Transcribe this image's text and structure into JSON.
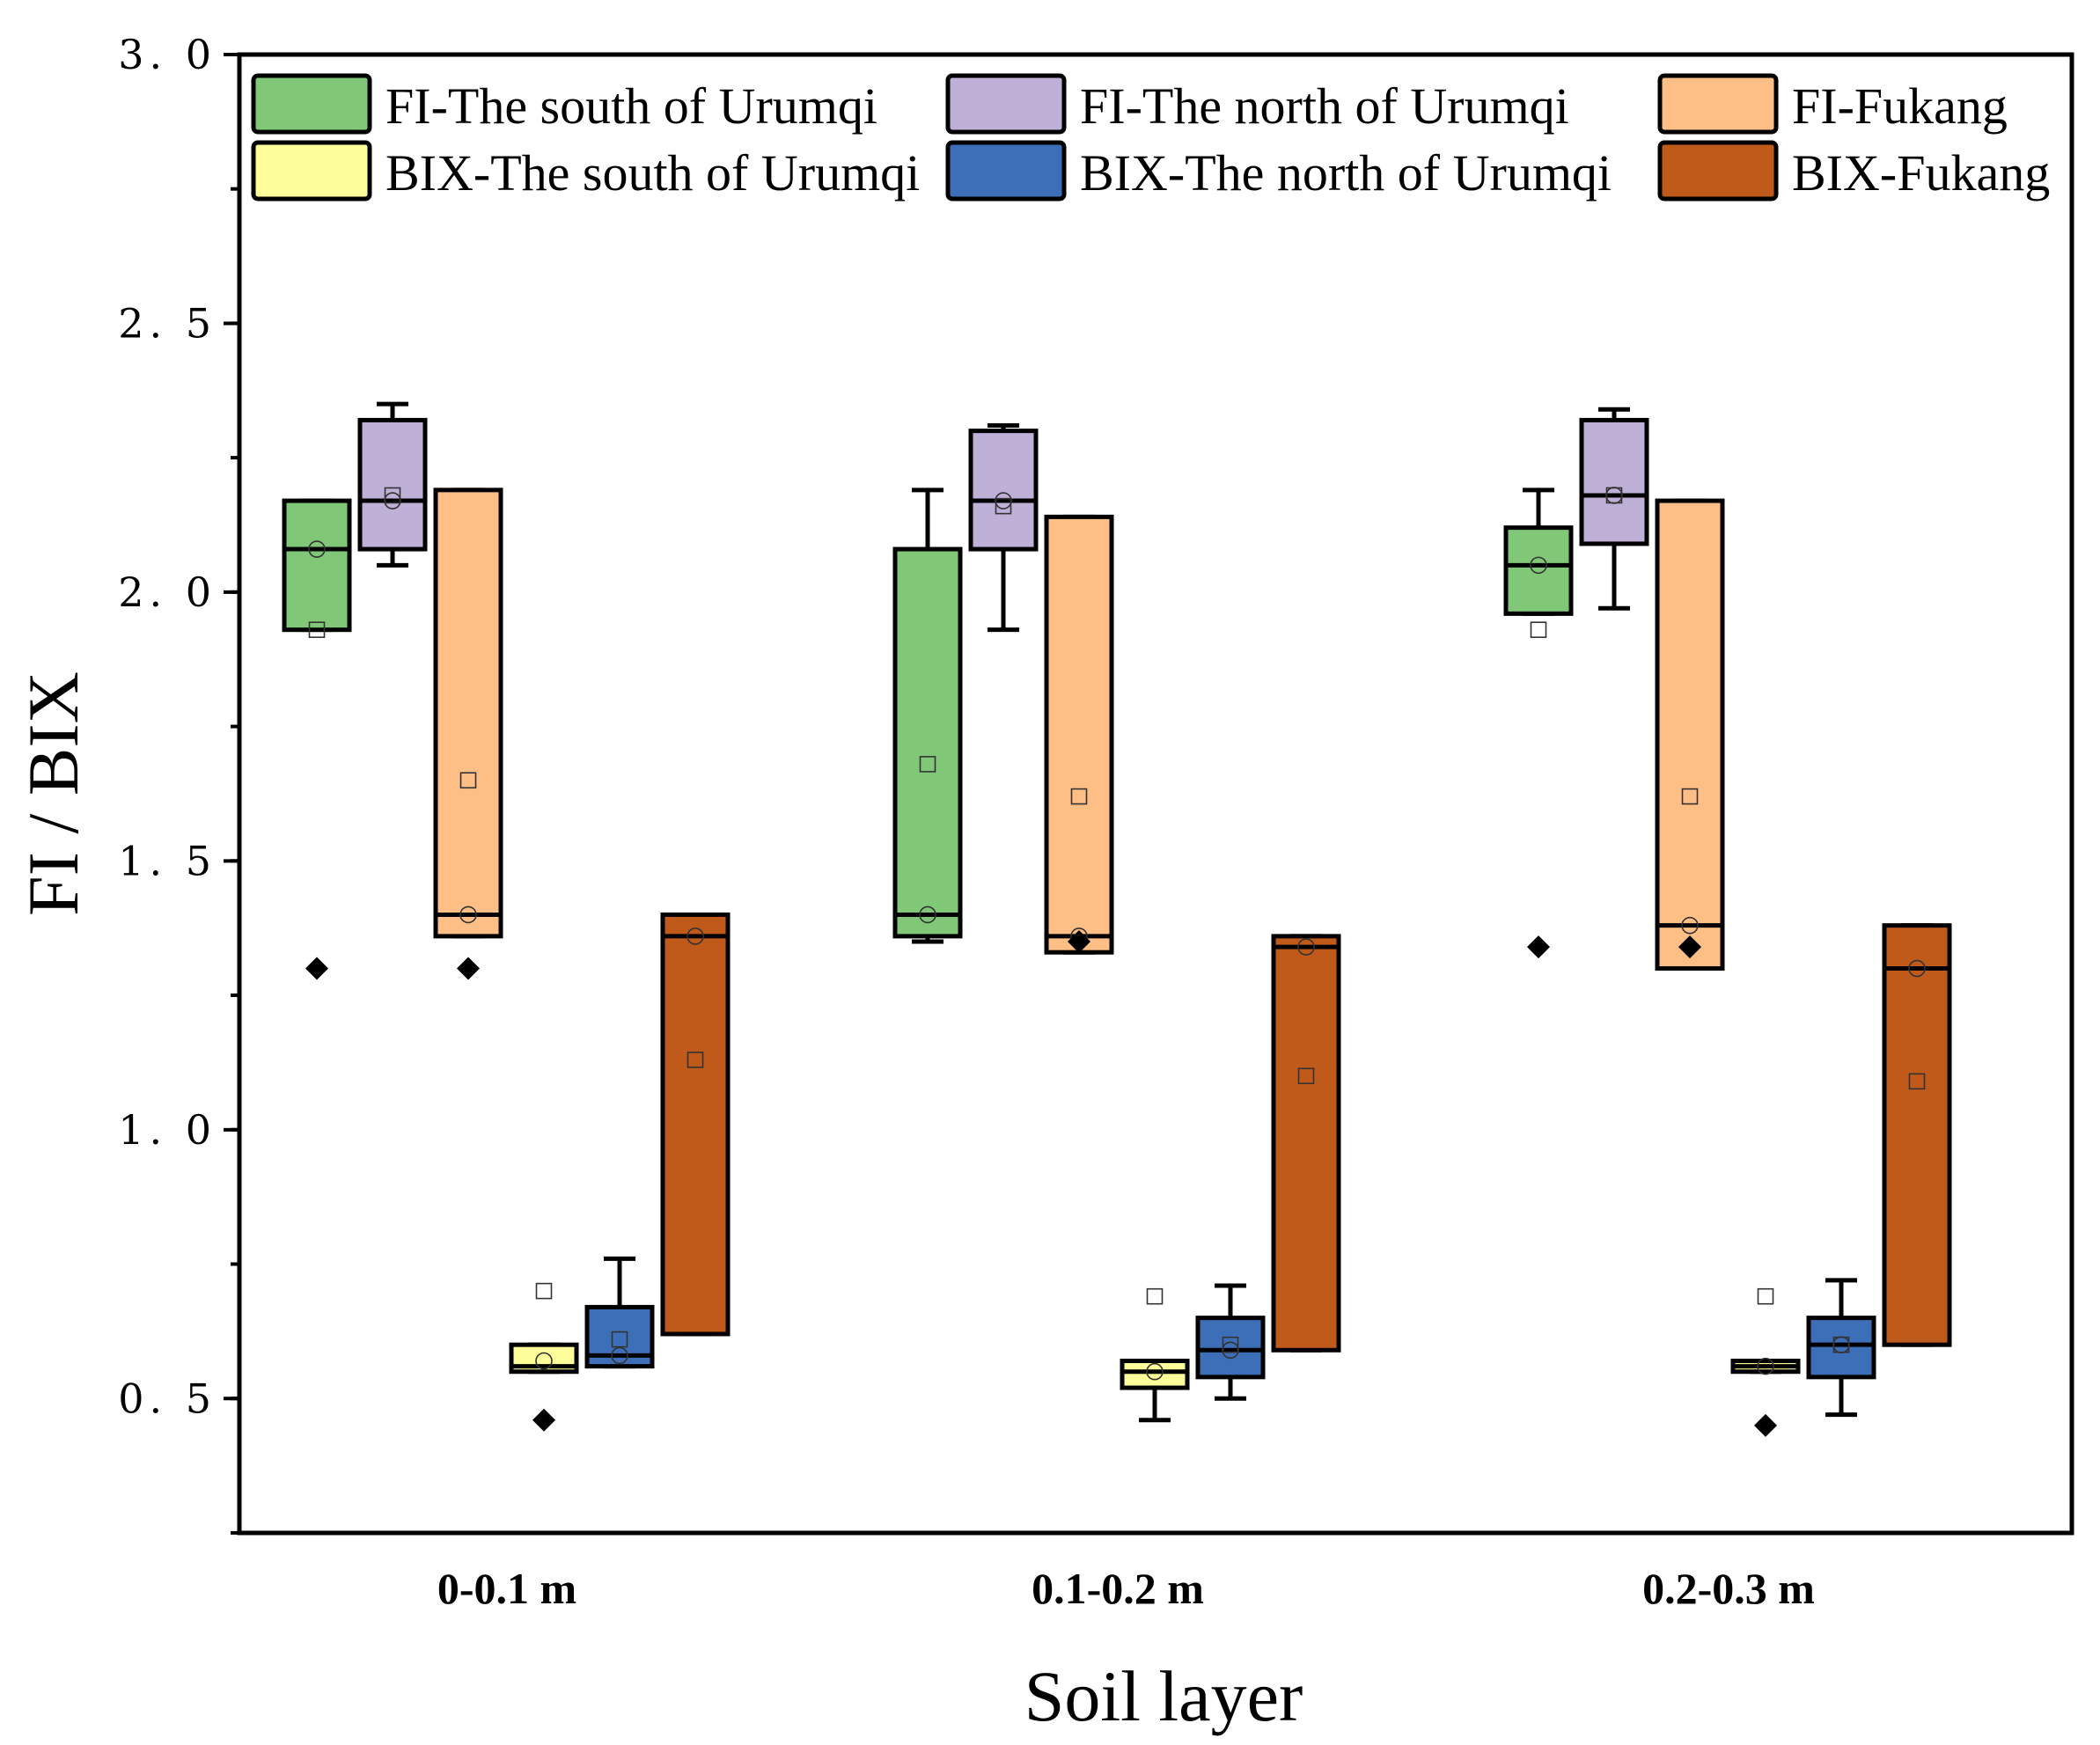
{
  "chart_data": {
    "type": "box",
    "title": "",
    "xlabel": "Soil layer",
    "ylabel": "FI / BIX",
    "ylim": [
      0.25,
      3.0
    ],
    "yticks": [
      {
        "value": 0.5,
        "label": "0. 5"
      },
      {
        "value": 1.0,
        "label": "1. 0"
      },
      {
        "value": 1.5,
        "label": "1. 5"
      },
      {
        "value": 2.0,
        "label": "2. 0"
      },
      {
        "value": 2.5,
        "label": "2. 5"
      },
      {
        "value": 3.0,
        "label": "3. 0"
      }
    ],
    "categories": [
      "0-0.1 m",
      "0.1-0.2 m",
      "0.2-0.3 m"
    ],
    "legend_position": "top",
    "series": [
      {
        "name": "FI-The south of Urumqi",
        "color": "#80c878",
        "boxes": [
          {
            "q1": 1.93,
            "median": 2.08,
            "q3": 2.17,
            "whisker_low": 1.93,
            "whisker_high": 2.17,
            "mean": 1.93,
            "mean_circle": 2.08,
            "outliers": [
              1.3
            ]
          },
          {
            "q1": 1.36,
            "median": 1.4,
            "q3": 2.08,
            "whisker_low": 1.35,
            "whisker_high": 2.19,
            "mean": 1.68,
            "mean_circle": 1.4,
            "outliers": []
          },
          {
            "q1": 1.96,
            "median": 2.05,
            "q3": 2.12,
            "whisker_low": 1.96,
            "whisker_high": 2.19,
            "mean": 1.93,
            "mean_circle": 2.05,
            "outliers": [
              1.34
            ]
          }
        ]
      },
      {
        "name": "FI-The north of Urumqi",
        "color": "#bfb0d8",
        "boxes": [
          {
            "q1": 2.08,
            "median": 2.17,
            "q3": 2.32,
            "whisker_low": 2.05,
            "whisker_high": 2.35,
            "mean": 2.18,
            "mean_circle": 2.17,
            "outliers": []
          },
          {
            "q1": 2.08,
            "median": 2.17,
            "q3": 2.3,
            "whisker_low": 1.93,
            "whisker_high": 2.31,
            "mean": 2.16,
            "mean_circle": 2.17,
            "outliers": []
          },
          {
            "q1": 2.09,
            "median": 2.18,
            "q3": 2.32,
            "whisker_low": 1.97,
            "whisker_high": 2.34,
            "mean": 2.18,
            "mean_circle": 2.18,
            "outliers": []
          }
        ]
      },
      {
        "name": "FI-Fukang",
        "color": "#fdbf85",
        "boxes": [
          {
            "q1": 1.36,
            "median": 1.4,
            "q3": 2.19,
            "whisker_low": 1.36,
            "whisker_high": 2.19,
            "mean": 1.65,
            "mean_circle": 1.4,
            "outliers": [
              1.3
            ]
          },
          {
            "q1": 1.33,
            "median": 1.36,
            "q3": 2.14,
            "whisker_low": 1.33,
            "whisker_high": 2.14,
            "mean": 1.62,
            "mean_circle": 1.36,
            "outliers": [
              1.35
            ]
          },
          {
            "q1": 1.3,
            "median": 1.38,
            "q3": 2.17,
            "whisker_low": 1.3,
            "whisker_high": 2.17,
            "mean": 1.62,
            "mean_circle": 1.38,
            "outliers": [
              1.34
            ]
          }
        ]
      },
      {
        "name": "BIX-The south of Urumqi",
        "color": "#fdfd99",
        "boxes": [
          {
            "q1": 0.55,
            "median": 0.56,
            "q3": 0.6,
            "whisker_low": 0.55,
            "whisker_high": 0.6,
            "mean": 0.7,
            "mean_circle": 0.57,
            "outliers": [
              0.46
            ]
          },
          {
            "q1": 0.52,
            "median": 0.55,
            "q3": 0.57,
            "whisker_low": 0.46,
            "whisker_high": 0.57,
            "mean": 0.69,
            "mean_circle": 0.55,
            "outliers": []
          },
          {
            "q1": 0.55,
            "median": 0.56,
            "q3": 0.57,
            "whisker_low": 0.55,
            "whisker_high": 0.57,
            "mean": 0.69,
            "mean_circle": 0.56,
            "outliers": [
              0.45
            ]
          }
        ]
      },
      {
        "name": "BIX-The north of Urumqi",
        "color": "#3c6fb8",
        "boxes": [
          {
            "q1": 0.56,
            "median": 0.58,
            "q3": 0.67,
            "whisker_low": 0.56,
            "whisker_high": 0.76,
            "mean": 0.61,
            "mean_circle": 0.58,
            "outliers": []
          },
          {
            "q1": 0.54,
            "median": 0.59,
            "q3": 0.65,
            "whisker_low": 0.5,
            "whisker_high": 0.71,
            "mean": 0.6,
            "mean_circle": 0.59,
            "outliers": []
          },
          {
            "q1": 0.54,
            "median": 0.6,
            "q3": 0.65,
            "whisker_low": 0.47,
            "whisker_high": 0.72,
            "mean": 0.6,
            "mean_circle": 0.6,
            "outliers": []
          }
        ]
      },
      {
        "name": "BIX-Fukang",
        "color": "#c05a1a",
        "boxes": [
          {
            "q1": 0.62,
            "median": 1.36,
            "q3": 1.4,
            "whisker_low": 0.62,
            "whisker_high": 1.4,
            "mean": 1.13,
            "mean_circle": 1.36,
            "outliers": []
          },
          {
            "q1": 0.59,
            "median": 1.34,
            "q3": 1.36,
            "whisker_low": 0.59,
            "whisker_high": 1.36,
            "mean": 1.1,
            "mean_circle": 1.34,
            "outliers": []
          },
          {
            "q1": 0.6,
            "median": 1.3,
            "q3": 1.38,
            "whisker_low": 0.6,
            "whisker_high": 1.38,
            "mean": 1.09,
            "mean_circle": 1.3,
            "outliers": []
          }
        ]
      }
    ]
  }
}
